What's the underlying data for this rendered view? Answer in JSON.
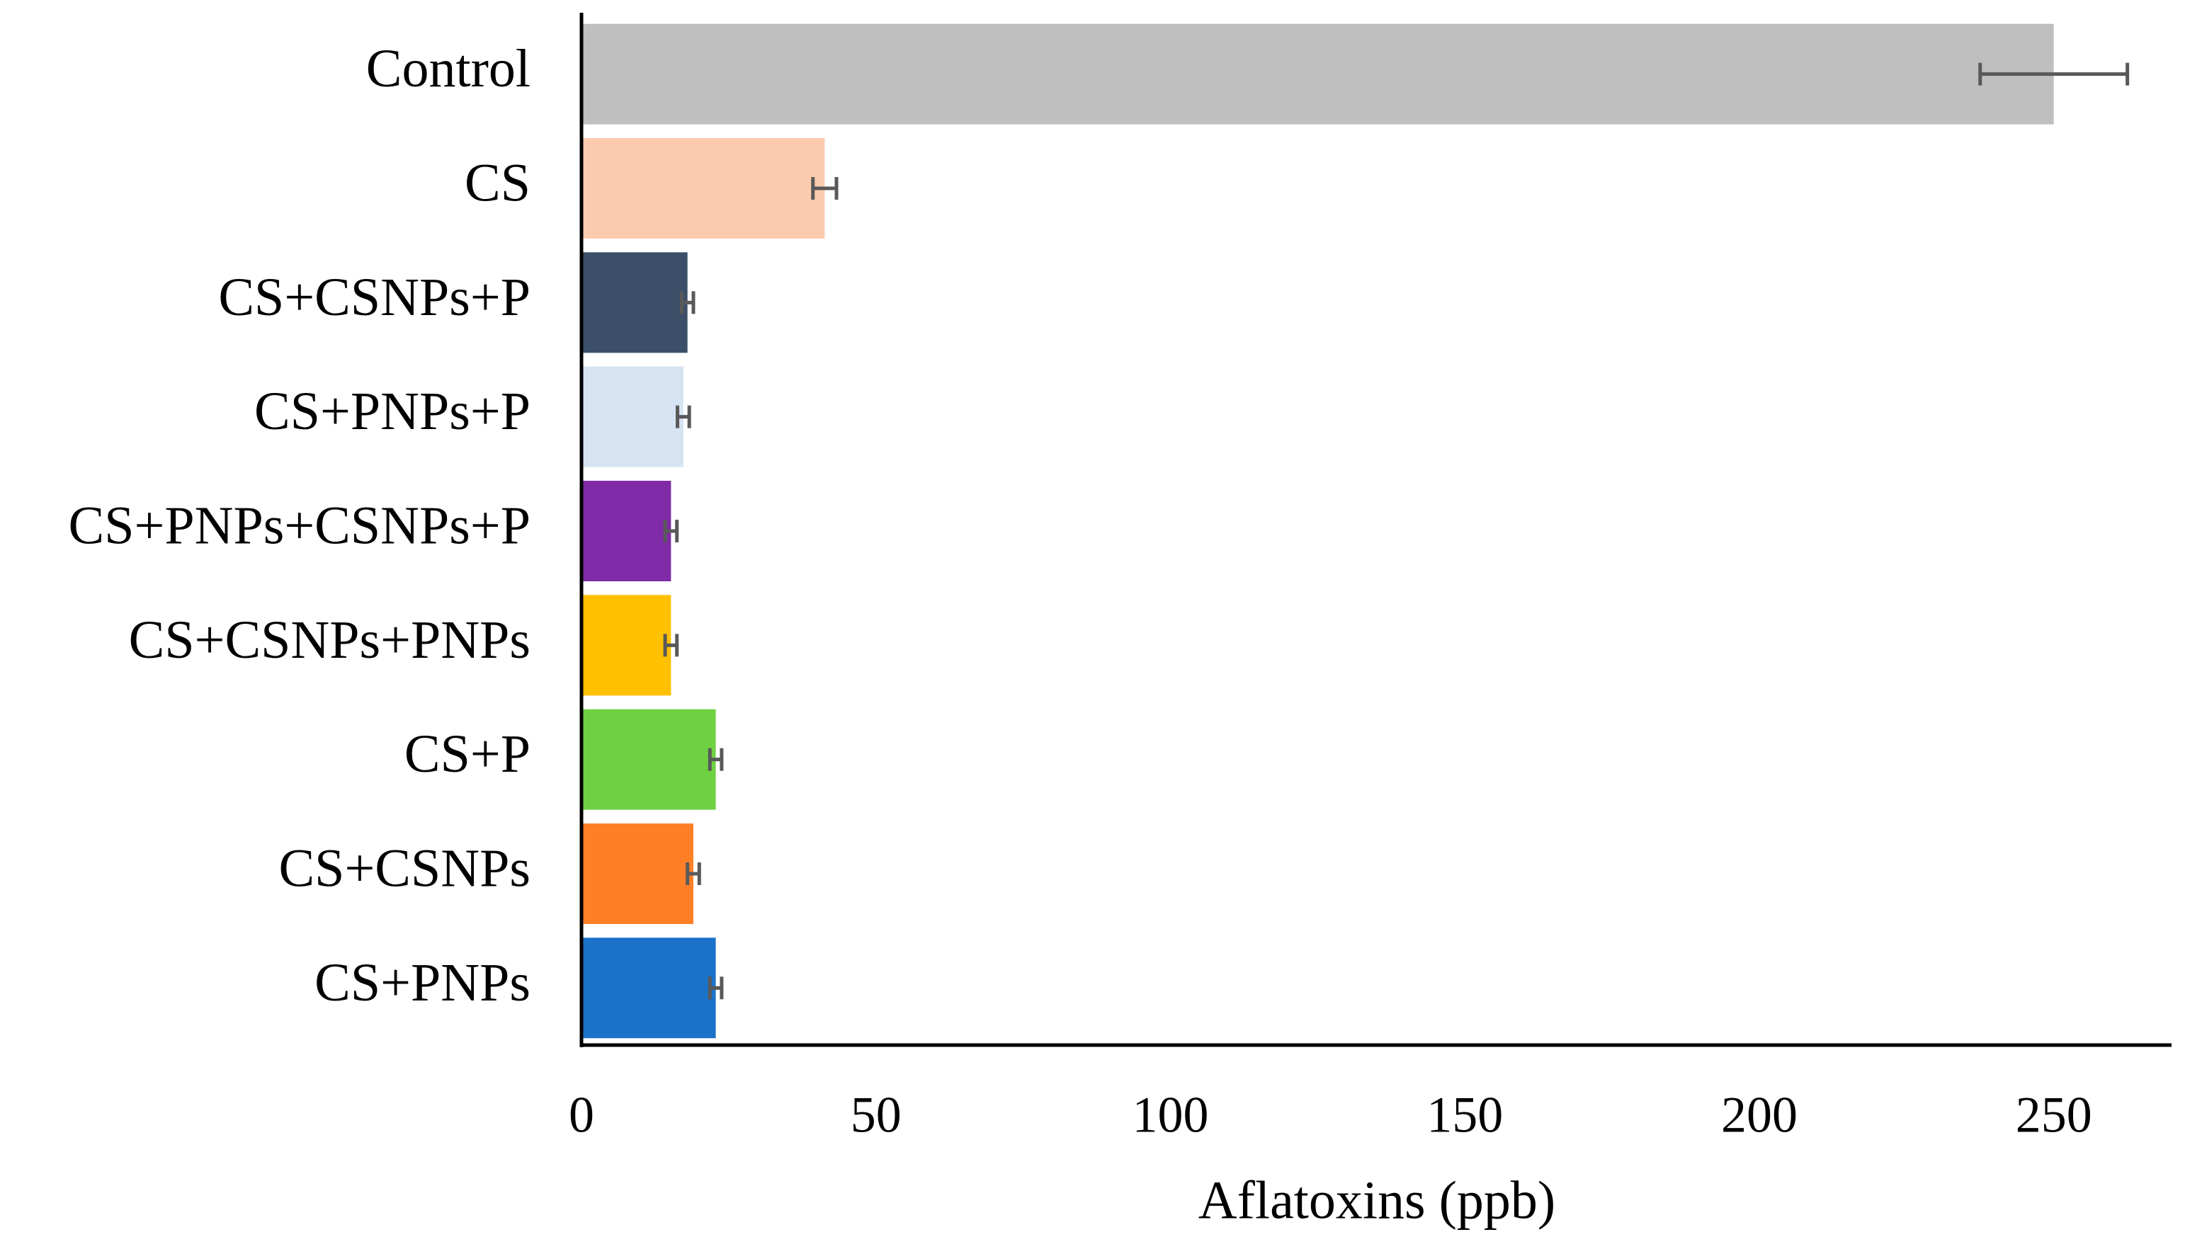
{
  "chart_data": {
    "type": "barh",
    "xlabel": "Aflatoxins (ppb)",
    "categories": [
      "Control",
      "CS",
      "CS+CSNPs+P",
      "CS+PNPs+P",
      "CS+PNPs+CSNPs+P",
      "CS+CSNPs+PNPs",
      "CS+P",
      "CS+CSNPs",
      "CS+PNPs"
    ],
    "values": [
      250,
      41.3,
      18,
      17.3,
      15.2,
      15.2,
      22.8,
      19,
      22.8
    ],
    "errors": [
      12.5,
      2,
      1,
      1,
      1,
      1,
      1,
      1,
      1
    ],
    "colors": [
      "#bfbfbf",
      "#fccbad",
      "#3b5068",
      "#d6e3f3",
      "#7f2aa6",
      "#ffc000",
      "#6fd142",
      "#ff7f27",
      "#1a72c9"
    ],
    "error_color": "#595959",
    "xlim": [
      0,
      270
    ],
    "xticks": [
      0,
      50,
      100,
      150,
      200,
      250
    ]
  }
}
